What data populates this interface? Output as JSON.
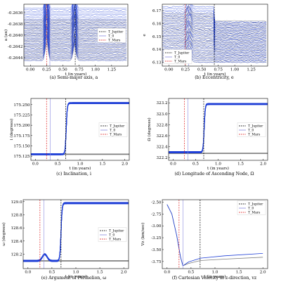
{
  "figure": {
    "caption_text": "Six-panel figure of orbital elements versus time",
    "series_colors": {
      "blue": "#1f3fd6",
      "gray": "#7f7f7f",
      "jupiter_line": "#000000",
      "t0_line": "#8a8ae0",
      "mars_line": "#e02020"
    }
  },
  "chart_data": [
    {
      "type": "line",
      "caption": "(a) Semi-major axis, a",
      "xlabel": "t (in years)",
      "ylabel": "a (au)",
      "xlim": [
        -0.1,
        1.5
      ],
      "ylim": [
        -0.26455,
        -0.26345
      ],
      "xticks": [
        0.0,
        0.25,
        0.5,
        0.75,
        1.0,
        1.25
      ],
      "xtick_labels": [
        "0.00",
        "0.25",
        "0.50",
        "0.75",
        "1.00",
        "1.25"
      ],
      "yticks": [
        -0.2636,
        -0.2638,
        -0.264,
        -0.2642,
        -0.2644
      ],
      "ytick_labels": [
        "-0.2636",
        "-0.2638",
        "-0.2640",
        "-0.2642",
        "-0.2644"
      ],
      "legend": [
        "T_Jupiter",
        "T_0",
        "T_Mars"
      ],
      "legend_position": "right",
      "vlines": {
        "jupiter": 0.69,
        "t0": 0.3,
        "mars": 0.25
      },
      "series": [
        {
          "name": "blue",
          "band": [
            -0.26445,
            -0.26352
          ]
        },
        {
          "name": "gray",
          "band": [
            -0.26445,
            -0.26372
          ]
        }
      ]
    },
    {
      "type": "line",
      "caption": "(b) Eccentricity, e",
      "xlabel": "t (in years)",
      "ylabel": "e",
      "xlim": [
        -0.1,
        1.5
      ],
      "ylim": [
        6.127,
        6.175
      ],
      "xticks": [
        0.0,
        0.25,
        0.5,
        0.75,
        1.0,
        1.25
      ],
      "xtick_labels": [
        "0.00",
        "0.25",
        "0.50",
        "0.75",
        "1.00",
        "1.25"
      ],
      "yticks": [
        6.13,
        6.14,
        6.15,
        6.16,
        6.17
      ],
      "ytick_labels": [
        "6.13",
        "6.14",
        "6.15",
        "6.16",
        "6.17"
      ],
      "legend": [
        "T_Jupiter",
        "T_0",
        "T_Mars"
      ],
      "legend_position": "lower left",
      "vlines": {
        "jupiter": 0.69,
        "t0": 0.3,
        "mars": 0.25
      },
      "series": [
        {
          "name": "blue",
          "band": [
            6.13,
            6.173
          ]
        },
        {
          "name": "gray",
          "band": [
            6.13,
            6.168
          ]
        }
      ]
    },
    {
      "type": "line",
      "caption": "(c) Inclination, i",
      "xlabel": "t (in years)",
      "ylabel": "i (degrees)",
      "xlim": [
        -0.1,
        2.1
      ],
      "ylim": [
        175.115,
        175.265
      ],
      "xticks": [
        0.0,
        0.5,
        1.0,
        1.5,
        2.0
      ],
      "xtick_labels": [
        "0.0",
        "0.5",
        "1.0",
        "1.5",
        "2.0"
      ],
      "yticks": [
        175.125,
        175.15,
        175.175,
        175.2,
        175.225,
        175.25
      ],
      "ytick_labels": [
        "175.125",
        "175.150",
        "175.175",
        "175.200",
        "175.225",
        "175.250"
      ],
      "legend": [
        "T_Jupiter",
        "T_0",
        "T_Mars"
      ],
      "legend_position": "right",
      "vlines": {
        "jupiter": 0.68,
        "t0": 0.33,
        "mars": 0.25
      },
      "series": [
        {
          "name": "blue",
          "start": 175.13,
          "end": 175.254,
          "step_at": 0.69
        },
        {
          "name": "gray",
          "start": 175.13,
          "end": 175.13
        }
      ]
    },
    {
      "type": "line",
      "caption": "(d) Longitude of Ascending Node, Ω",
      "xlabel": "t (in years)",
      "ylabel": "Ω (degrees)",
      "xlim": [
        -0.1,
        2.1
      ],
      "ylim": [
        322.15,
        323.28
      ],
      "xticks": [
        0.0,
        0.5,
        1.0,
        1.5,
        2.0
      ],
      "xtick_labels": [
        "0.0",
        "0.5",
        "1.0",
        "1.5",
        "2.0"
      ],
      "yticks": [
        322.2,
        322.4,
        322.6,
        322.8,
        323.0,
        323.2
      ],
      "ytick_labels": [
        "322.2",
        "322.4",
        "322.6",
        "322.8",
        "323.0",
        "323.2"
      ],
      "legend": [
        "T_Jupiter",
        "T_0",
        "T_Mars"
      ],
      "legend_position": "right",
      "vlines": {
        "jupiter": 0.68,
        "t0": 0.33,
        "mars": 0.25
      },
      "series": [
        {
          "name": "blue",
          "start": 322.3,
          "end": 323.18,
          "step_at": 0.69
        },
        {
          "name": "gray",
          "start": 322.28,
          "end": 322.28
        }
      ]
    },
    {
      "type": "line",
      "caption": "(e) Argument of Perihelion, ω",
      "xlabel": "t (in years)",
      "ylabel": "ω (degrees)",
      "xlim": [
        -0.1,
        2.1
      ],
      "ylim": [
        127.98,
        129.03
      ],
      "xticks": [
        0.0,
        0.5,
        1.0,
        1.5,
        2.0
      ],
      "xtick_labels": [
        "0.0",
        "0.5",
        "1.0",
        "1.5",
        "2.0"
      ],
      "yticks": [
        128.2,
        128.4,
        128.6,
        128.8,
        129.0
      ],
      "ytick_labels": [
        "128.2",
        "128.4",
        "128.6",
        "128.8",
        "129.0"
      ],
      "legend": [
        "T_Jupiter",
        "T_0",
        "T_Mars"
      ],
      "legend_position": "right",
      "vlines": {
        "jupiter": 0.69,
        "t0": 0.33,
        "mars": 0.25
      },
      "series": [
        {
          "name": "blue",
          "start": 128.1,
          "bump": 128.2,
          "end": 128.98,
          "step_at": 0.69
        },
        {
          "name": "gray",
          "start": 128.1,
          "end": 128.1
        }
      ]
    },
    {
      "type": "line",
      "caption": "(f) Cartesian Velocity in z-direction, vz",
      "xlabel": "t (in years)",
      "ylabel": "Vz (km/sec)",
      "xlim": [
        -0.1,
        2.1
      ],
      "ylim": [
        -3.9,
        -2.45
      ],
      "xticks": [
        0.0,
        0.5,
        1.0,
        1.5,
        2.0
      ],
      "xtick_labels": [
        "0.0",
        "0.5",
        "1.0",
        "1.5",
        "2.0"
      ],
      "yticks": [
        -2.5,
        -2.75,
        -3.0,
        -3.25,
        -3.5,
        -3.75
      ],
      "ytick_labels": [
        "-2.50",
        "-2.75",
        "-3.00",
        "-3.25",
        "-3.50",
        "-3.75"
      ],
      "legend": [
        "T_Jupiter",
        "T_0",
        "T_Mars"
      ],
      "legend_position": "upper right",
      "vlines": {
        "jupiter": 0.69,
        "t0": 0.33,
        "mars": 0.25
      },
      "series": [
        {
          "name": "blue",
          "points": [
            [
              0.0,
              -2.55
            ],
            [
              0.1,
              -2.75
            ],
            [
              0.2,
              -3.2
            ],
            [
              0.28,
              -3.65
            ],
            [
              0.33,
              -3.84
            ],
            [
              0.45,
              -3.76
            ],
            [
              0.7,
              -3.68
            ],
            [
              1.2,
              -3.63
            ],
            [
              2.0,
              -3.58
            ]
          ]
        },
        {
          "name": "gray",
          "points": [
            [
              0.0,
              -2.55
            ],
            [
              0.1,
              -2.75
            ],
            [
              0.2,
              -3.2
            ],
            [
              0.28,
              -3.65
            ],
            [
              0.33,
              -3.84
            ],
            [
              0.45,
              -3.79
            ],
            [
              0.7,
              -3.73
            ],
            [
              1.2,
              -3.7
            ],
            [
              2.0,
              -3.66
            ]
          ]
        }
      ]
    }
  ]
}
